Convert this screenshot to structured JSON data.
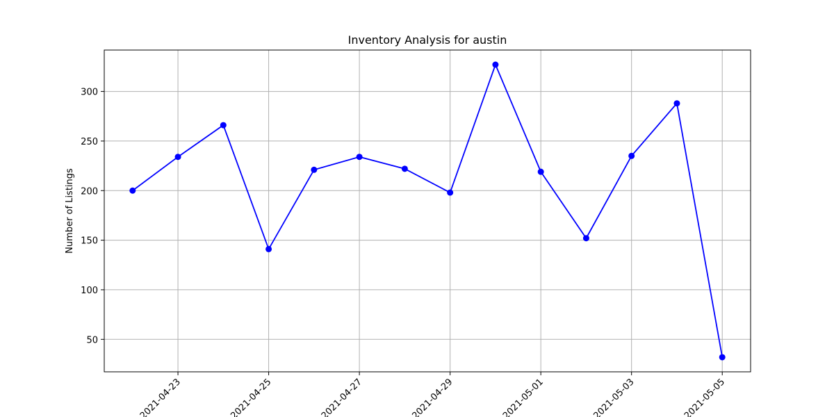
{
  "chart_data": {
    "type": "line",
    "title": "Inventory Analysis for austin",
    "xlabel": "",
    "ylabel": "Number of Listings",
    "x": [
      "2021-04-22",
      "2021-04-23",
      "2021-04-24",
      "2021-04-25",
      "2021-04-26",
      "2021-04-27",
      "2021-04-28",
      "2021-04-29",
      "2021-04-30",
      "2021-05-01",
      "2021-05-02",
      "2021-05-03",
      "2021-05-04",
      "2021-05-05"
    ],
    "series": [
      {
        "values": [
          200,
          234,
          266,
          141,
          221,
          234,
          222,
          198,
          327,
          219,
          152,
          235,
          288,
          32
        ],
        "color": "#0000ff",
        "marker": "circle"
      }
    ],
    "x_ticks": [
      "2021-04-23",
      "2021-04-25",
      "2021-04-27",
      "2021-04-29",
      "2021-05-01",
      "2021-05-03",
      "2021-05-05"
    ],
    "y_ticks": [
      50,
      100,
      150,
      200,
      250,
      300
    ],
    "xlim": [
      "2021-04-21T09:00",
      "2021-05-05T15:00"
    ],
    "ylim": [
      17.25,
      341.75
    ],
    "grid": true,
    "tick_label_rotation": 45,
    "colors": {
      "axis": "#000000",
      "grid": "#b0b0b0",
      "line": "#0000ff"
    }
  }
}
